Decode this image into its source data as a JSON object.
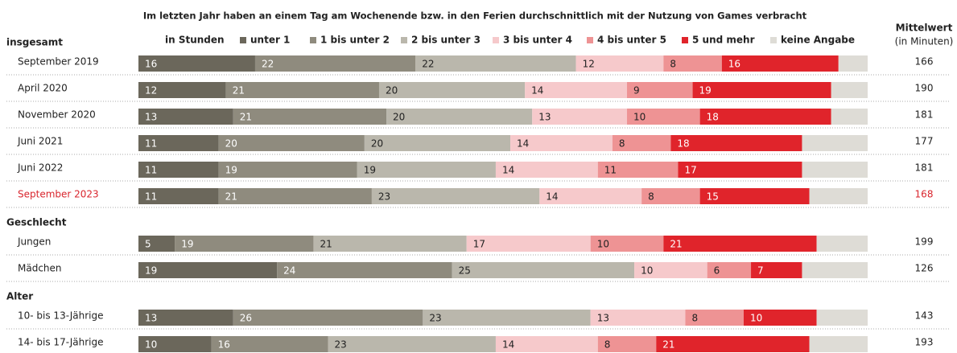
{
  "chart_data": {
    "type": "stacked_bar_horizontal",
    "title": "Im letzten Jahr haben an einem Tag am Wochenende bzw. in den Ferien durchschnittlich mit der Nutzung von Games verbracht",
    "legend_title": "in Stunden",
    "xlim": [
      0,
      100
    ],
    "groups": [
      {
        "name": "insgesamt",
        "categories": [
          "September 2019",
          "April 2020",
          "November 2020",
          "Juni 2021",
          "Juni 2022",
          "September 2023"
        ]
      },
      {
        "name": "Geschlecht",
        "categories": [
          "Jungen",
          "Mädchen"
        ]
      },
      {
        "name": "Alter",
        "categories": [
          "10- bis 13-Jährige",
          "14- bis 17-Jährige"
        ]
      }
    ],
    "highlight": "September 2023",
    "highlight_color": "#d9262e",
    "series": [
      {
        "name": "unter 1",
        "color": "#6b675b",
        "values": [
          16,
          12,
          13,
          11,
          11,
          11,
          5,
          19,
          13,
          10
        ]
      },
      {
        "name": "1 bis unter 2",
        "color": "#8f8b7e",
        "values": [
          22,
          21,
          21,
          20,
          19,
          21,
          19,
          24,
          26,
          16
        ]
      },
      {
        "name": "2 bis unter 3",
        "color": "#bab7ac",
        "values": [
          22,
          20,
          20,
          20,
          19,
          23,
          21,
          25,
          23,
          23
        ]
      },
      {
        "name": "3 bis unter 4",
        "color": "#f6c9cb",
        "values": [
          12,
          14,
          13,
          14,
          14,
          14,
          17,
          10,
          13,
          14
        ]
      },
      {
        "name": "4 bis unter 5",
        "color": "#ee9394",
        "values": [
          8,
          9,
          10,
          8,
          11,
          8,
          10,
          6,
          8,
          8
        ]
      },
      {
        "name": "5 und mehr",
        "color": "#e0242b",
        "values": [
          16,
          19,
          18,
          18,
          17,
          15,
          21,
          7,
          10,
          21
        ]
      },
      {
        "name": "keine Angabe",
        "color": "#dedcd6",
        "values": [
          4,
          5,
          5,
          9,
          9,
          8,
          7,
          9,
          7,
          8
        ],
        "data_labels": false
      }
    ],
    "mean": {
      "title": "Mittelwert",
      "subtitle": "(in Minuten)",
      "values": [
        166,
        190,
        181,
        177,
        181,
        168,
        199,
        126,
        143,
        193
      ]
    }
  }
}
